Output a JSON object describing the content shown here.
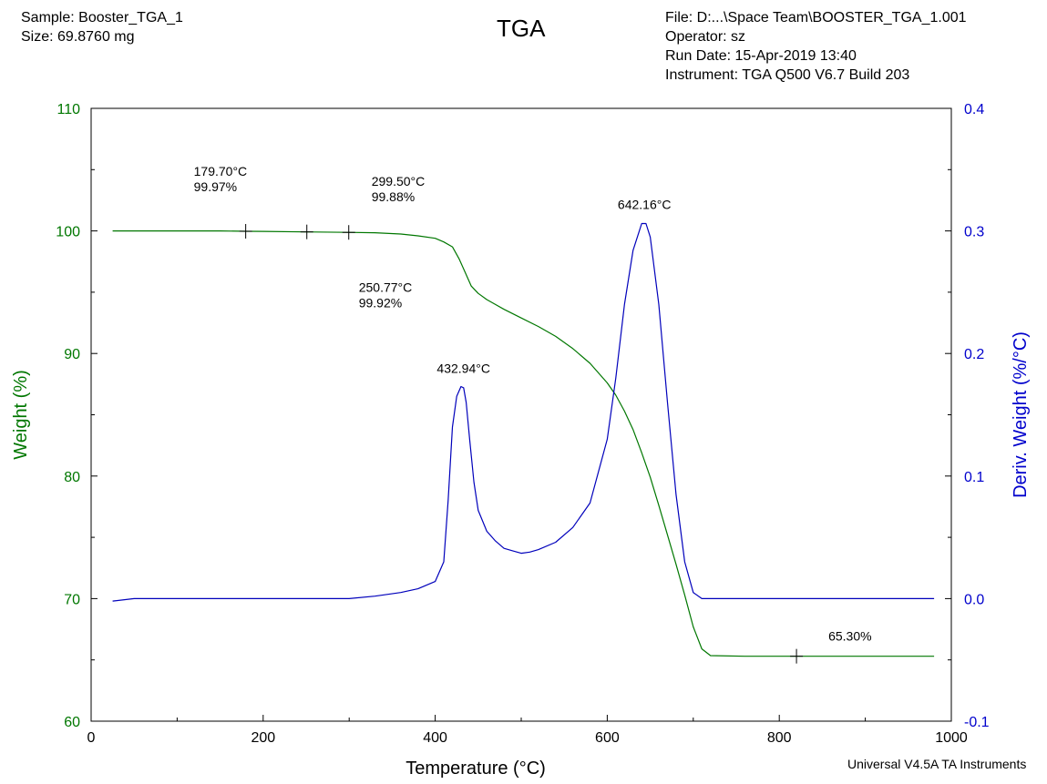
{
  "header": {
    "sample": "Sample: Booster_TGA_1",
    "size": "Size:  69.8760 mg",
    "file": "File: D:...\\Space Team\\BOOSTER_TGA_1.001",
    "operator": "Operator: sz",
    "run_date": "Run Date: 15-Apr-2019 13:40",
    "instrument": "Instrument: TGA Q500 V6.7 Build 203"
  },
  "footer": "Universal V4.5A TA Instruments",
  "colors": {
    "weight": "#007700",
    "deriv": "#0000bb",
    "deriv_axis": "#0000cc",
    "frame": "#000000"
  },
  "chart_data": {
    "type": "line",
    "title": "TGA",
    "xlabel": "Temperature (°C)",
    "ylabel": "Weight (%)",
    "y2label": "Deriv. Weight (%/°C)",
    "xlim": [
      0,
      1000
    ],
    "ylim": [
      60,
      110
    ],
    "y2lim": [
      -0.1,
      0.4
    ],
    "x_ticks": [
      "0",
      "200",
      "400",
      "600",
      "800",
      "1000"
    ],
    "y_ticks": [
      "60",
      "70",
      "80",
      "90",
      "100",
      "110"
    ],
    "y2_ticks": [
      "-0.1",
      "0.0",
      "0.1",
      "0.2",
      "0.3",
      "0.4"
    ],
    "grid": false,
    "series": [
      {
        "key": "weight",
        "axis": "left",
        "x": [
          25,
          100,
          150,
          180,
          200,
          250,
          299,
          330,
          360,
          380,
          400,
          410,
          420,
          428,
          435,
          442,
          450,
          460,
          470,
          480,
          500,
          520,
          540,
          560,
          580,
          600,
          610,
          620,
          630,
          640,
          650,
          660,
          670,
          680,
          690,
          700,
          710,
          720,
          760,
          820,
          900,
          980
        ],
        "y": [
          100.0,
          100.0,
          100.0,
          99.97,
          99.96,
          99.92,
          99.88,
          99.85,
          99.75,
          99.6,
          99.4,
          99.1,
          98.7,
          97.7,
          96.6,
          95.5,
          94.9,
          94.4,
          94.0,
          93.6,
          92.9,
          92.2,
          91.4,
          90.4,
          89.2,
          87.6,
          86.6,
          85.3,
          83.8,
          81.9,
          79.9,
          77.6,
          75.2,
          72.8,
          70.3,
          67.7,
          65.9,
          65.35,
          65.3,
          65.3,
          65.3,
          65.3
        ]
      },
      {
        "key": "deriv",
        "axis": "right",
        "x": [
          25,
          50,
          100,
          200,
          300,
          330,
          360,
          380,
          400,
          410,
          415,
          420,
          425,
          430,
          433,
          436,
          440,
          445,
          450,
          460,
          470,
          480,
          490,
          500,
          510,
          520,
          540,
          560,
          580,
          600,
          610,
          620,
          630,
          640,
          645,
          650,
          660,
          670,
          680,
          690,
          700,
          710,
          720,
          740,
          800,
          900,
          980
        ],
        "y": [
          -0.002,
          0.0,
          0.0,
          0.0,
          0.0,
          0.002,
          0.005,
          0.008,
          0.014,
          0.03,
          0.08,
          0.14,
          0.165,
          0.173,
          0.172,
          0.16,
          0.13,
          0.095,
          0.072,
          0.055,
          0.047,
          0.041,
          0.039,
          0.037,
          0.038,
          0.04,
          0.046,
          0.058,
          0.078,
          0.13,
          0.18,
          0.24,
          0.284,
          0.306,
          0.306,
          0.295,
          0.24,
          0.16,
          0.085,
          0.03,
          0.005,
          0.0,
          0.0,
          0.0,
          0.0,
          0.0,
          0.0
        ]
      }
    ],
    "markers": [
      {
        "series": "weight",
        "x": 179.7,
        "y": 99.97
      },
      {
        "series": "weight",
        "x": 250.77,
        "y": 99.92
      },
      {
        "series": "weight",
        "x": 299.5,
        "y": 99.88
      },
      {
        "series": "weight",
        "x": 820,
        "y": 65.3
      }
    ],
    "annotations": [
      {
        "key": "a1",
        "series": "weight",
        "x": 179.7,
        "y": 99.97,
        "lines": [
          "179.70°C",
          "99.97%"
        ]
      },
      {
        "key": "a2",
        "series": "weight",
        "x": 250.77,
        "y": 99.92,
        "lines": [
          "250.77°C",
          "99.92%"
        ]
      },
      {
        "key": "a3",
        "series": "weight",
        "x": 299.5,
        "y": 99.88,
        "lines": [
          "299.50°C",
          "99.88%"
        ]
      },
      {
        "key": "a4",
        "series": "deriv",
        "x": 432.94,
        "y": 0.173,
        "lines": [
          "432.94°C"
        ]
      },
      {
        "key": "a5",
        "series": "deriv",
        "x": 642.16,
        "y": 0.306,
        "lines": [
          "642.16°C"
        ]
      },
      {
        "key": "a6",
        "series": "weight",
        "x": 820,
        "y": 65.3,
        "lines": [
          "65.30%"
        ]
      }
    ]
  }
}
